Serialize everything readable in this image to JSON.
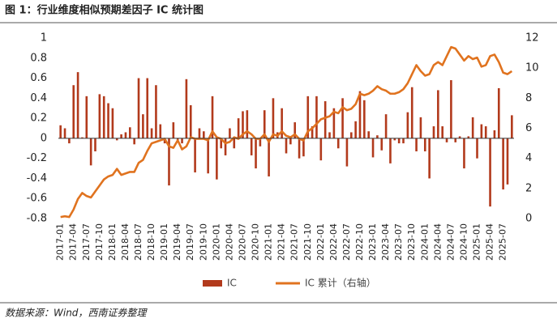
{
  "chart_data": {
    "type": "bar_line",
    "title": "图 1：行业维度相似预期差因子 IC 统计图",
    "source": "数据来源：Wind，西南证券整理",
    "categories": [
      "2017-01",
      null,
      null,
      "2017-04",
      null,
      null,
      "2017-07",
      null,
      null,
      "2017-10",
      null,
      null,
      "2018-01",
      null,
      null,
      "2018-04",
      null,
      null,
      "2018-07",
      null,
      null,
      "2018-10",
      null,
      null,
      "2019-01",
      null,
      null,
      "2019-04",
      null,
      null,
      "2019-07",
      null,
      null,
      "2019-10",
      null,
      null,
      "2020-01",
      null,
      null,
      "2020-04",
      null,
      null,
      "2020-07",
      null,
      null,
      "2020-10",
      null,
      null,
      "2021-01",
      null,
      null,
      "2021-04",
      null,
      null,
      "2021-07",
      null,
      null,
      "2021-10",
      null,
      null,
      "2022-01",
      null,
      null,
      "2022-04",
      null,
      null,
      "2022-07",
      null,
      null,
      "2022-10",
      null,
      null,
      "2023-01",
      null,
      null,
      "2023-04",
      null,
      null,
      "2023-07",
      null,
      null,
      "2023-10",
      null,
      null,
      "2024-01",
      null,
      null,
      "2024-04",
      null,
      null,
      "2024-07",
      null,
      null,
      "2024-10",
      null,
      null,
      "2025-01",
      null,
      null,
      "2025-04",
      null,
      null,
      "2025-07",
      null,
      null
    ],
    "series": [
      {
        "name": "IC",
        "type": "bar",
        "color": "#b23a1c",
        "axis": "y",
        "values": [
          0.13,
          0.1,
          -0.05,
          0.53,
          0.66,
          0.01,
          0.42,
          -0.27,
          -0.13,
          0.44,
          0.42,
          0.35,
          0.3,
          -0.02,
          0.04,
          0.06,
          0.11,
          -0.06,
          0.6,
          0.24,
          0.6,
          0.1,
          0.53,
          0.14,
          -0.05,
          -0.47,
          0.16,
          -0.02,
          -0.05,
          0.59,
          0.33,
          -0.34,
          0.1,
          0.07,
          -0.35,
          0.42,
          -0.41,
          -0.1,
          -0.17,
          0.1,
          -0.1,
          0.2,
          0.27,
          0.28,
          -0.17,
          -0.3,
          -0.08,
          0.28,
          -0.38,
          0.4,
          0.06,
          0.3,
          -0.15,
          -0.06,
          0.16,
          -0.2,
          -0.18,
          0.42,
          0.12,
          0.42,
          -0.22,
          0.37,
          0.06,
          0.3,
          -0.1,
          0.4,
          -0.28,
          0.06,
          0.17,
          0.47,
          0.38,
          0.07,
          -0.19,
          0.03,
          -0.12,
          0.24,
          -0.25,
          -0.02,
          -0.05,
          -0.05,
          0.26,
          0.51,
          -0.13,
          0.21,
          -0.13,
          -0.4,
          0.12,
          0.48,
          0.12,
          -0.04,
          0.58,
          -0.04,
          0.02,
          -0.3,
          0.02,
          0.21,
          -0.2,
          0.14,
          0.12,
          -0.68,
          0.08,
          0.5,
          -0.51,
          -0.46,
          0.23
        ]
      },
      {
        "name": "IC 累计（右轴）",
        "type": "line",
        "color": "#e0731f",
        "axis": "y2",
        "values": [
          0.1,
          0.15,
          0.1,
          0.6,
          1.3,
          1.7,
          1.5,
          1.4,
          1.8,
          2.2,
          2.6,
          2.8,
          2.9,
          3.3,
          2.9,
          3.0,
          3.1,
          3.1,
          3.7,
          3.9,
          4.5,
          5.0,
          5.1,
          5.2,
          5.3,
          4.8,
          4.7,
          5.2,
          4.6,
          4.8,
          5.4,
          5.3,
          5.3,
          5.3,
          5.2,
          5.8,
          5.4,
          5.3,
          5.0,
          5.1,
          5.4,
          5.3,
          5.6,
          5.8,
          5.6,
          5.3,
          5.3,
          5.6,
          5.1,
          5.6,
          5.5,
          5.8,
          5.5,
          5.4,
          5.6,
          5.3,
          5.2,
          5.8,
          6.0,
          6.3,
          6.6,
          6.7,
          6.8,
          7.1,
          7.0,
          7.4,
          7.2,
          7.3,
          7.6,
          8.3,
          8.2,
          8.3,
          8.5,
          8.8,
          8.6,
          8.5,
          8.3,
          8.3,
          8.4,
          8.6,
          9.0,
          9.6,
          10.2,
          9.8,
          9.5,
          9.6,
          10.2,
          10.4,
          10.2,
          10.8,
          11.4,
          11.3,
          10.9,
          10.5,
          10.8,
          10.6,
          10.7,
          10.1,
          10.2,
          10.8,
          10.9,
          10.4,
          9.7,
          9.6,
          9.8
        ]
      }
    ],
    "ylim": [
      -0.8,
      1
    ],
    "yticks": [
      -0.8,
      -0.6,
      -0.4,
      -0.2,
      0,
      0.2,
      0.4,
      0.6,
      0.8,
      1
    ],
    "y2lim": [
      0,
      12
    ],
    "y2ticks": [
      0,
      2,
      4,
      6,
      8,
      10,
      12
    ],
    "legend": "bottom"
  }
}
